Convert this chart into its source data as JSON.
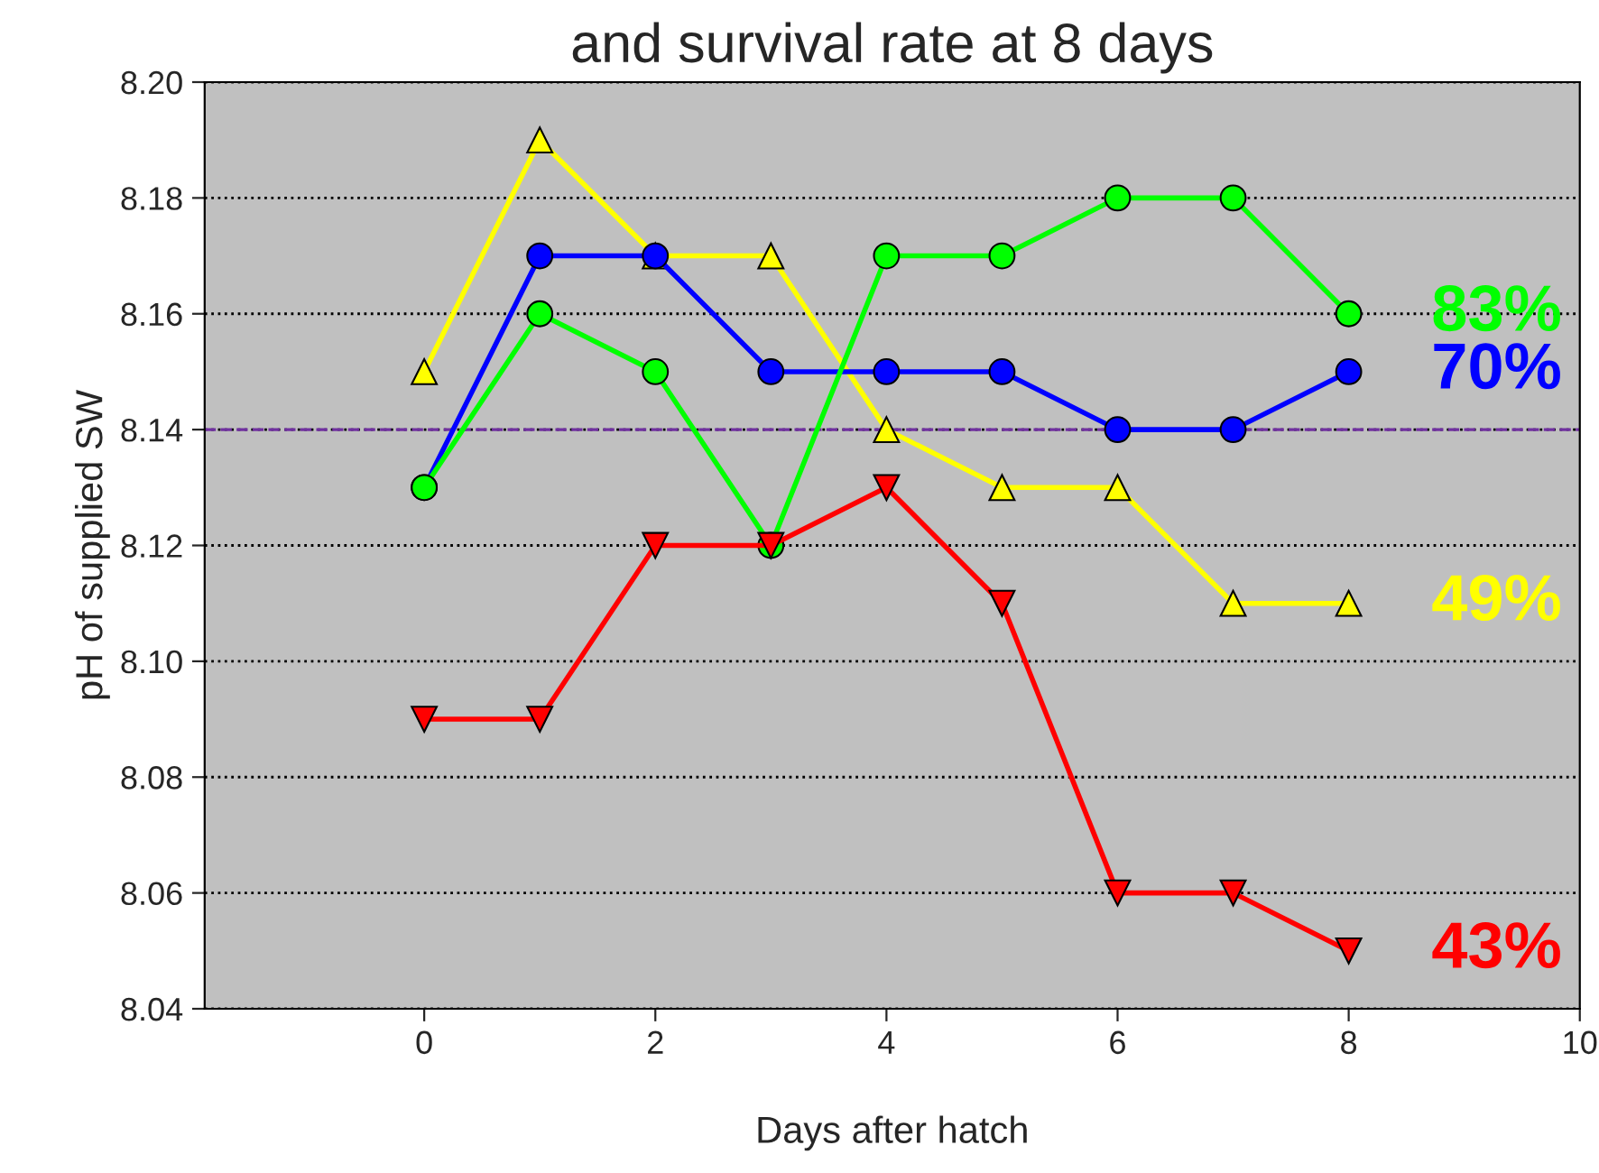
{
  "chart_data": {
    "type": "line",
    "title": "and survival rate at 8 days",
    "xlabel": "Days after hatch",
    "ylabel": "pH of supplied SW",
    "x": [
      0,
      1,
      2,
      3,
      4,
      5,
      6,
      7,
      8
    ],
    "series": [
      {
        "color": "#ffff00",
        "marker": "triangle",
        "values": [
          8.15,
          8.19,
          8.17,
          8.17,
          8.14,
          8.13,
          8.13,
          8.11,
          8.11
        ]
      },
      {
        "color": "#0000ff",
        "marker": "circle",
        "values": [
          8.13,
          8.17,
          8.17,
          8.15,
          8.15,
          8.15,
          8.14,
          8.14,
          8.15
        ]
      },
      {
        "color": "#00ff00",
        "marker": "circle",
        "values": [
          8.13,
          8.16,
          8.15,
          8.12,
          8.17,
          8.17,
          8.18,
          8.18,
          8.16
        ]
      },
      {
        "color": "#ff0000",
        "marker": "triangle_down",
        "values": [
          8.09,
          8.09,
          8.12,
          8.12,
          8.13,
          8.11,
          8.06,
          8.06,
          8.05
        ]
      }
    ],
    "annotations": [
      "83%",
      "70%",
      "49%",
      "43%"
    ],
    "ref_lines": [
      {
        "axis": "y",
        "value": 8.14,
        "color": "#7030a0",
        "line_style": "dashed"
      }
    ],
    "xlim": [
      -1.9,
      10
    ],
    "xticks": [
      0,
      2,
      4,
      6,
      8,
      10
    ],
    "ylim": [
      8.04,
      8.2
    ],
    "yticks": [
      {
        "value": 8.04,
        "label": "8.04"
      },
      {
        "value": 8.06,
        "label": "8.06"
      },
      {
        "value": 8.08,
        "label": "8.08"
      },
      {
        "value": 8.1,
        "label": "8.10"
      },
      {
        "value": 8.12,
        "label": "8.12"
      },
      {
        "value": 8.14,
        "label": "8.14"
      },
      {
        "value": 8.16,
        "label": "8.16"
      },
      {
        "value": 8.18,
        "label": "8.18"
      },
      {
        "value": 8.2,
        "label": "8.20"
      }
    ],
    "grid": "y",
    "legend": false
  }
}
